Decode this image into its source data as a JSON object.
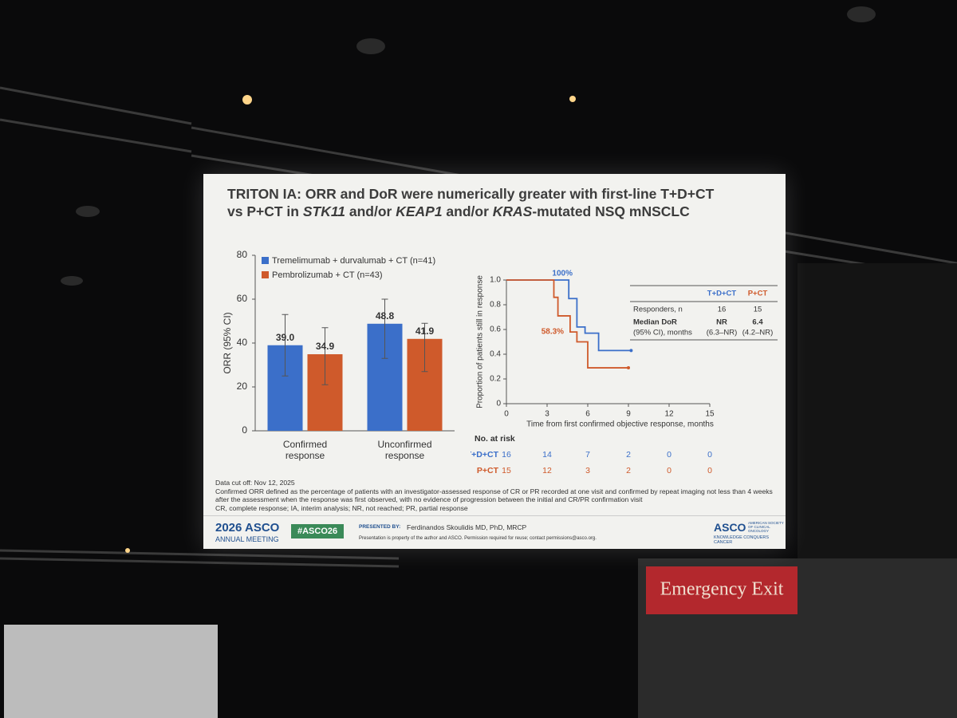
{
  "background": {
    "emergency_sign": "Emergency Exit"
  },
  "slide": {
    "title_lines": [
      [
        {
          "text": "TRITON IA: ORR and DoR were numerically greater with first-line T+D+CT",
          "italic": false
        }
      ],
      [
        {
          "text": "vs P+CT in ",
          "italic": false
        },
        {
          "text": "STK11",
          "italic": true
        },
        {
          "text": " and/or ",
          "italic": false
        },
        {
          "text": "KEAP1",
          "italic": true
        },
        {
          "text": " and/or ",
          "italic": false
        },
        {
          "text": "KRAS",
          "italic": true
        },
        {
          "text": "-mutated NSQ mNSCLC",
          "italic": false
        }
      ]
    ],
    "footnotes": [
      "Data cut off: Nov 12, 2025",
      "Confirmed ORR defined as the percentage of patients with an investigator-assessed response of CR or PR recorded at one visit and confirmed by repeat imaging not less than 4 weeks after the assessment when the response was first observed, with no evidence of progression between the initial and CR/PR confirmation visit",
      "CR, complete response; IA, interim analysis; NR, not reached; PR, partial response"
    ],
    "footer": {
      "meeting": "2026 ASCO",
      "meeting_sub": "ANNUAL MEETING",
      "hashtag": "#ASCO26",
      "presented_by": "PRESENTED BY:",
      "presenter": "Ferdinandos Skoulidis MD, PhD, MRCP",
      "property": "Presentation is property of the author and ASCO. Permission required for reuse; contact permissions@asco.org.",
      "logo": "ASCO",
      "logo_sub": "AMERICAN SOCIETY OF CLINICAL ONCOLOGY",
      "logo_tag": "KNOWLEDGE CONQUERS CANCER"
    }
  },
  "dor_table": {
    "header": [
      "T+D+CT",
      "P+CT"
    ],
    "responders": {
      "label": "Responders, n",
      "values": [
        16,
        15
      ]
    },
    "median": {
      "label": "Median DoR",
      "label_sub": "(95% CI), months",
      "values": [
        "NR",
        "6.4"
      ],
      "ci": [
        "(6.3–NR)",
        "(4.2–NR)"
      ]
    }
  },
  "risk_table": {
    "title": "No. at risk",
    "rows": [
      {
        "label": "T+D+CT",
        "color": "#3b6fc9",
        "counts": [
          16,
          14,
          7,
          2,
          0,
          0
        ]
      },
      {
        "label": "P+CT",
        "color": "#cf5a2b",
        "counts": [
          15,
          12,
          3,
          2,
          0,
          0
        ]
      }
    ]
  },
  "chart_data": [
    {
      "type": "bar",
      "ylabel": "ORR (95% CI)",
      "categories": [
        "Confirmed response",
        "Unconfirmed response"
      ],
      "series": [
        {
          "name": "Tremelimumab + durvalumab + CT (n=41)",
          "color": "#3b6fc9",
          "values": [
            39.0,
            48.8
          ],
          "value_labels": [
            "39.0",
            "48.8"
          ],
          "ci_low": [
            25,
            33
          ],
          "ci_high": [
            53,
            60
          ]
        },
        {
          "name": "Pembrolizumab + CT (n=43)",
          "color": "#cf5a2b",
          "values": [
            34.9,
            41.9
          ],
          "value_labels": [
            "34.9",
            "41.9"
          ],
          "ci_low": [
            21,
            27
          ],
          "ci_high": [
            47,
            49
          ]
        }
      ],
      "ylim": [
        0,
        80
      ],
      "yticks": [
        0,
        20,
        40,
        60,
        80
      ],
      "grid": false
    },
    {
      "type": "line",
      "ylabel": "Proportion of patients still in response",
      "xlabel": "Time from first confirmed objective response, months",
      "series": [
        {
          "name": "T+D+CT",
          "color": "#3b6fc9",
          "x": [
            0,
            4.6,
            4.6,
            5.2,
            5.2,
            5.8,
            5.8,
            6.8,
            6.8,
            9.2
          ],
          "values": [
            1,
            1,
            0.85,
            0.85,
            0.62,
            0.62,
            0.57,
            0.57,
            0.43,
            0.43
          ]
        },
        {
          "name": "P+CT",
          "color": "#cf5a2b",
          "x": [
            0,
            3.5,
            3.5,
            3.8,
            3.8,
            4.7,
            4.7,
            5.2,
            5.2,
            6.0,
            6.0,
            9.0
          ],
          "values": [
            1,
            1,
            0.86,
            0.86,
            0.71,
            0.71,
            0.58,
            0.58,
            0.5,
            0.5,
            0.29,
            0.29
          ]
        }
      ],
      "annotations": [
        "100%",
        "58.3%"
      ],
      "xlim": [
        0,
        15
      ],
      "xticks": [
        0,
        3,
        6,
        9,
        12,
        15
      ],
      "ylim": [
        0,
        1
      ],
      "yticks": [
        0,
        0.2,
        0.4,
        0.6,
        0.8,
        {
          "value": 1,
          "label": "1.0"
        }
      ],
      "grid": false
    }
  ]
}
